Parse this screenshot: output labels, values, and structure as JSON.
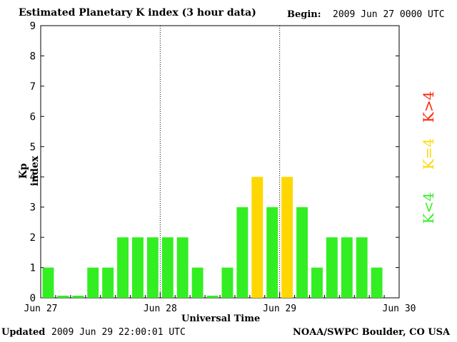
{
  "header": {
    "title": "Estimated Planetary K index (3 hour data)",
    "begin_label": "Begin:",
    "begin_value": "2009 Jun 27 0000 UTC"
  },
  "footer": {
    "updated_label": "Updated",
    "updated_value": "2009 Jun 29 22:00:01 UTC",
    "credit": "NOAA/SWPC Boulder, CO USA"
  },
  "legend": {
    "items": [
      {
        "label": "K>4",
        "color": "#ff2200"
      },
      {
        "label": "K=4",
        "color": "#ffd700"
      },
      {
        "label": "K<4",
        "color": "#33ee22"
      }
    ]
  },
  "chart_data": {
    "type": "bar",
    "title": "Estimated Planetary K index (3 hour data)",
    "xlabel": "Universal Time",
    "ylabel": "Kp index",
    "ylim": [
      0,
      9
    ],
    "yticks": [
      0,
      1,
      2,
      3,
      4,
      5,
      6,
      7,
      8,
      9
    ],
    "xlim": [
      0,
      24
    ],
    "xticks": [
      {
        "label": "Jun 27",
        "pos": 0
      },
      {
        "label": "Jun 28",
        "pos": 8
      },
      {
        "label": "Jun 29",
        "pos": 16
      },
      {
        "label": "Jun 30",
        "pos": 24
      }
    ],
    "day_dividers": [
      8,
      16
    ],
    "values": [
      1,
      0,
      0,
      1,
      1,
      2,
      2,
      2,
      2,
      2,
      1,
      0,
      1,
      3,
      4,
      3,
      4,
      3,
      1,
      2,
      2,
      2,
      1
    ],
    "colors": {
      "below": "#33ee22",
      "equal": "#ffd700",
      "above": "#ff2200"
    },
    "grid": false
  }
}
